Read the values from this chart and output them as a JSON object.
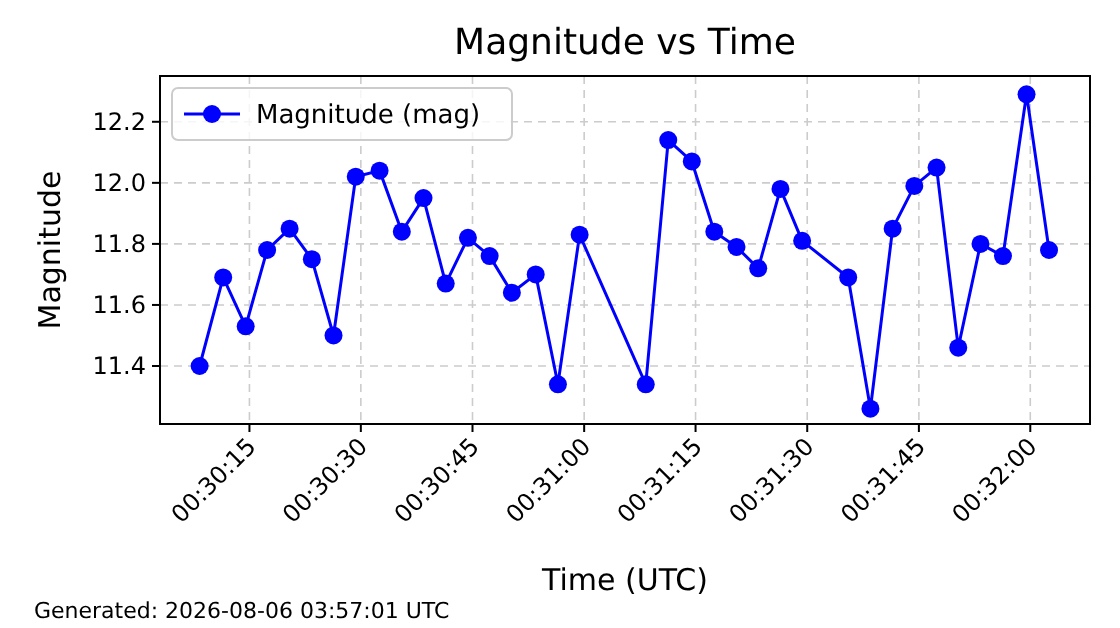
{
  "chart_data": {
    "type": "line",
    "title": "Magnitude vs Time",
    "xlabel": "Time (UTC)",
    "ylabel": "Magnitude",
    "annotations": [
      "Generated: 2026-08-06 03:57:01 UTC"
    ],
    "x": [
      0.50231,
      0.50319,
      0.50403,
      0.50483,
      0.50567,
      0.5065,
      0.50731,
      0.50814,
      0.50903,
      0.50986,
      0.51067,
      0.5115,
      0.51233,
      0.51314,
      0.51397,
      0.51486,
      0.51569,
      0.5165,
      0.51897,
      0.51981,
      0.52069,
      0.52153,
      0.52236,
      0.52317,
      0.524,
      0.52481,
      0.52653,
      0.52736,
      0.52819,
      0.529,
      0.52983,
      0.53064,
      0.53147,
      0.53231,
      0.53319,
      0.53403
    ],
    "series": [
      {
        "name": "Magnitude (mag)",
        "color": "#0000ff",
        "values": [
          11.4,
          11.69,
          11.53,
          11.78,
          11.85,
          11.75,
          11.5,
          12.02,
          12.04,
          11.84,
          11.95,
          11.67,
          11.82,
          11.76,
          11.64,
          11.7,
          11.34,
          11.83,
          11.34,
          12.14,
          12.07,
          11.84,
          11.79,
          11.72,
          11.98,
          11.81,
          11.69,
          11.26,
          11.85,
          11.99,
          12.05,
          11.46,
          11.8,
          11.76,
          12.29,
          11.78
        ]
      }
    ],
    "xlim": [
      0.50083,
      0.53556
    ],
    "xticks": [
      {
        "value": 0.50417,
        "label": "00:30:15"
      },
      {
        "value": 0.50833,
        "label": "00:30:30"
      },
      {
        "value": 0.5125,
        "label": "00:30:45"
      },
      {
        "value": 0.51667,
        "label": "00:31:00"
      },
      {
        "value": 0.52083,
        "label": "00:31:15"
      },
      {
        "value": 0.525,
        "label": "00:31:30"
      },
      {
        "value": 0.52917,
        "label": "00:31:45"
      },
      {
        "value": 0.53333,
        "label": "00:32:00"
      }
    ],
    "ylim": [
      11.21,
      12.35
    ],
    "yticks": [
      {
        "value": 11.4,
        "label": "11.4"
      },
      {
        "value": 11.6,
        "label": "11.6"
      },
      {
        "value": 11.8,
        "label": "11.8"
      },
      {
        "value": 12.0,
        "label": "12.0"
      },
      {
        "value": 12.2,
        "label": "12.2"
      }
    ],
    "grid": true,
    "legend": "top left",
    "marker": "circle",
    "line_style": "solid"
  }
}
